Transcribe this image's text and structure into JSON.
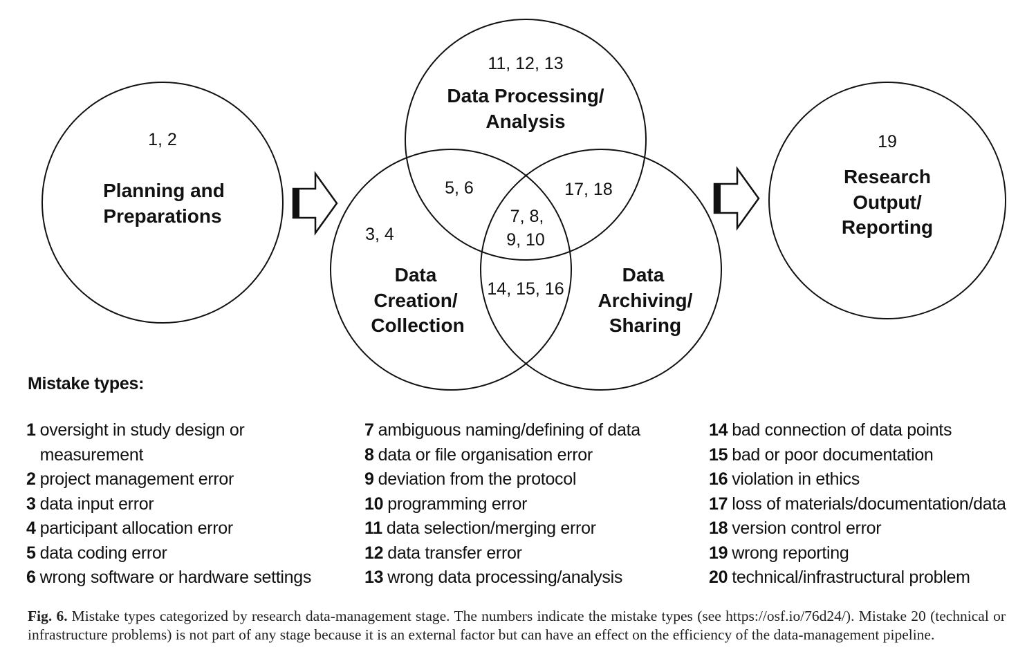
{
  "stages": {
    "planning": {
      "numbers": "1, 2",
      "label_lines": [
        "Planning and",
        "Preparations"
      ]
    },
    "processing": {
      "numbers": "11, 12, 13",
      "label_lines": [
        "Data Processing/",
        "Analysis"
      ]
    },
    "creation": {
      "numbers": "3, 4",
      "label_lines": [
        "Data",
        "Creation/",
        "Collection"
      ]
    },
    "archiving": {
      "label_lines": [
        "Data",
        "Archiving/",
        "Sharing"
      ]
    },
    "output": {
      "numbers": "19",
      "label_lines": [
        "Research",
        "Output/",
        "Reporting"
      ]
    }
  },
  "overlaps": {
    "creation_processing": "5, 6",
    "processing_archiving": "17, 18",
    "all_three": [
      "7, 8,",
      "9, 10"
    ],
    "creation_archiving": "14, 15, 16"
  },
  "legend": {
    "title": "Mistake types:",
    "columns": [
      [
        {
          "num": "1",
          "text": "oversight in study design or measurement"
        },
        {
          "num": "2",
          "text": "project management error"
        },
        {
          "num": "3",
          "text": "data input error"
        },
        {
          "num": "4",
          "text": "participant allocation error"
        },
        {
          "num": "5",
          "text": "data coding error"
        },
        {
          "num": "6",
          "text": "wrong software or hardware settings"
        }
      ],
      [
        {
          "num": "7",
          "text": "ambiguous naming/defining of data"
        },
        {
          "num": "8",
          "text": "data or file organisation error"
        },
        {
          "num": "9",
          "text": "deviation from the protocol"
        },
        {
          "num": "10",
          "text": "programming error"
        },
        {
          "num": "11",
          "text": "data selection/merging error"
        },
        {
          "num": "12",
          "text": "data transfer error"
        },
        {
          "num": "13",
          "text": "wrong data processing/analysis"
        }
      ],
      [
        {
          "num": "14",
          "text": "bad connection of data points"
        },
        {
          "num": "15",
          "text": "bad or poor documentation"
        },
        {
          "num": "16",
          "text": "violation in ethics"
        },
        {
          "num": "17",
          "text": "loss of materials/documentation/data"
        },
        {
          "num": "18",
          "text": "version control error"
        },
        {
          "num": "19",
          "text": "wrong reporting"
        },
        {
          "num": "20",
          "text": "technical/infrastructural problem"
        }
      ]
    ]
  },
  "caption": {
    "label": "Fig. 6.",
    "text": "Mistake types categorized by research data-management stage. The numbers indicate the mistake types (see https://osf.io/76d24/). Mistake 20 (technical or infrastructure problems) is not part of any stage because it is an external factor but can have an effect on the efficiency of the data-management pipeline."
  }
}
